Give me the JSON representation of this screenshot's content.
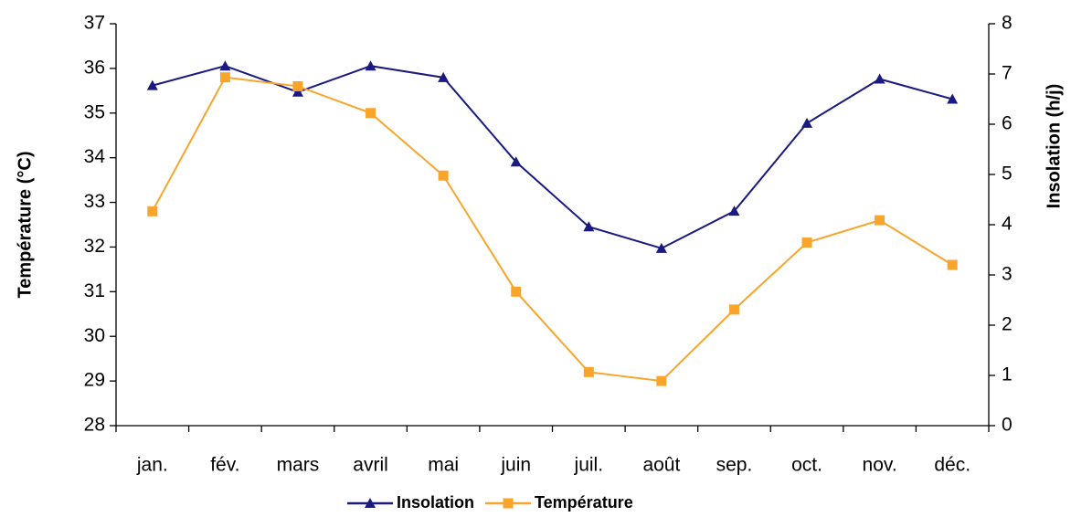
{
  "chart_data": {
    "type": "line",
    "y_label": "Température (°C)",
    "y2_label": "Insolation (h/j)",
    "categories": [
      "jan.",
      "fév.",
      "mars",
      "avril",
      "mai",
      "juin",
      "juil.",
      "août",
      "sep.",
      "oct.",
      "nov.",
      "déc."
    ],
    "series": [
      {
        "name": "Insolation",
        "color": "#1a1a80",
        "marker": "triangle",
        "axis": "y2",
        "values": [
          6.77,
          7.16,
          6.64,
          7.16,
          6.93,
          5.25,
          3.96,
          3.53,
          4.27,
          6.02,
          6.9,
          6.5
        ]
      },
      {
        "name": "Température",
        "color": "#f9a52c",
        "marker": "square",
        "axis": "y",
        "values": [
          32.8,
          35.8,
          35.6,
          35.0,
          33.6,
          31.0,
          29.2,
          29.0,
          30.6,
          32.1,
          32.6,
          31.6
        ]
      }
    ],
    "ylim": [
      28,
      37
    ],
    "yticks": [
      28,
      29,
      30,
      31,
      32,
      33,
      34,
      35,
      36,
      37
    ],
    "y2lim": [
      0,
      8
    ],
    "y2ticks": [
      0,
      1,
      2,
      3,
      4,
      5,
      6,
      7,
      8
    ],
    "grid": false,
    "legend": "bottom"
  }
}
